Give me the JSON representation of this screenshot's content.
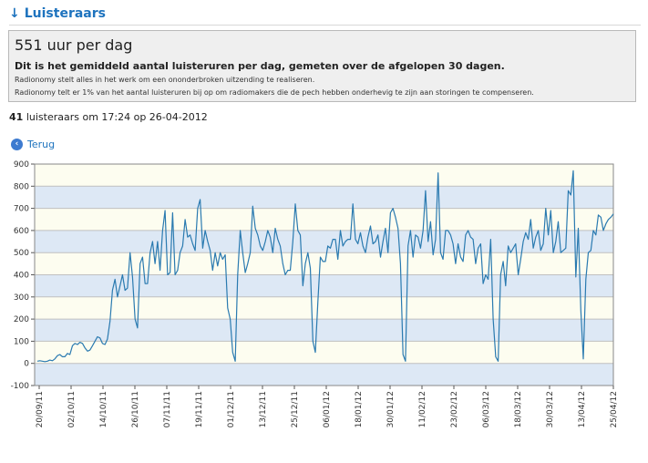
{
  "header": {
    "arrow_icon": "arrow-down-icon",
    "title": "Luisteraars"
  },
  "info": {
    "headline": "551 uur per dag",
    "subtitle": "Dit is het gemiddeld aantal luisteruren per dag, gemeten over de afgelopen 30 dagen.",
    "note1": "Radionomy stelt alles in het werk om een ononderbroken uitzending te realiseren.",
    "note2": "Radionomy telt er 1% van het aantal luisteruren bij op om radiomakers die de pech hebben onderhevig te zijn aan storingen te compenseren."
  },
  "status": {
    "count": "41",
    "text": "luisteraars om 17:24 op 26-04-2012"
  },
  "back": {
    "icon": "back-arrow-icon",
    "label": "Terug"
  },
  "chart_data": {
    "type": "line",
    "title": "",
    "xlabel": "",
    "ylabel": "",
    "ylim": [
      -100,
      900
    ],
    "yticks": [
      -100,
      0,
      100,
      200,
      300,
      400,
      500,
      600,
      700,
      800,
      900
    ],
    "grid": true,
    "line_color": "#2a7ab0",
    "band_colors": [
      "#dde8f5",
      "#fdfdf0"
    ],
    "x_tick_labels": [
      "20/09/11",
      "02/10/11",
      "14/10/11",
      "26/10/11",
      "07/11/11",
      "19/11/11",
      "01/12/11",
      "13/12/11",
      "25/12/11",
      "06/01/12",
      "18/01/12",
      "30/01/12",
      "11/02/12",
      "23/02/12",
      "06/03/12",
      "18/03/12",
      "30/03/12",
      "13/04/12",
      "25/04/12"
    ],
    "series": [
      {
        "values": [
          10,
          12,
          10,
          8,
          10,
          15,
          12,
          20,
          35,
          40,
          30,
          30,
          45,
          40,
          80,
          90,
          85,
          95,
          90,
          70,
          55,
          60,
          80,
          100,
          120,
          115,
          90,
          85,
          110,
          190,
          330,
          380,
          300,
          350,
          400,
          330,
          340,
          500,
          390,
          200,
          160,
          450,
          480,
          360,
          360,
          500,
          550,
          450,
          550,
          420,
          600,
          690,
          400,
          410,
          680,
          400,
          420,
          500,
          530,
          650,
          570,
          580,
          540,
          510,
          700,
          740,
          520,
          600,
          550,
          510,
          420,
          500,
          440,
          500,
          470,
          490,
          250,
          200,
          50,
          10,
          400,
          600,
          500,
          410,
          450,
          500,
          710,
          610,
          580,
          530,
          510,
          550,
          600,
          570,
          500,
          610,
          560,
          530,
          450,
          400,
          420,
          420,
          550,
          720,
          600,
          580,
          350,
          450,
          500,
          430,
          100,
          50,
          280,
          480,
          460,
          460,
          530,
          520,
          560,
          560,
          470,
          600,
          530,
          550,
          560,
          560,
          720,
          560,
          540,
          590,
          530,
          500,
          570,
          620,
          540,
          550,
          580,
          480,
          550,
          610,
          500,
          680,
          700,
          660,
          610,
          450,
          40,
          10,
          530,
          600,
          480,
          580,
          570,
          520,
          600,
          780,
          550,
          640,
          490,
          560,
          860,
          500,
          470,
          600,
          600,
          580,
          540,
          450,
          540,
          480,
          460,
          580,
          600,
          570,
          560,
          450,
          520,
          540,
          360,
          400,
          380,
          560,
          200,
          30,
          10,
          400,
          460,
          350,
          530,
          500,
          520,
          540,
          400,
          470,
          550,
          590,
          560,
          650,
          520,
          570,
          600,
          510,
          540,
          700,
          580,
          690,
          500,
          550,
          640,
          500,
          510,
          520,
          780,
          760,
          870,
          390,
          610,
          240,
          20,
          380,
          500,
          510,
          600,
          580,
          670,
          660,
          600,
          630,
          650,
          660,
          675
        ]
      }
    ]
  }
}
